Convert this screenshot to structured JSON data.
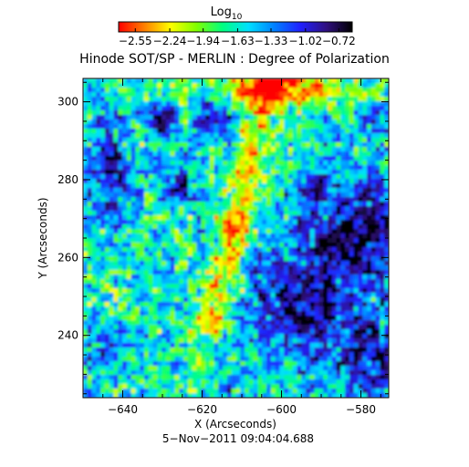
{
  "chart_data": {
    "type": "heatmap",
    "title": "Hinode SOT/SP - MERLIN : Degree of Polarization",
    "xlabel": "X (Arcseconds)",
    "ylabel": "Y (Arcseconds)",
    "xlim": [
      -650,
      -573
    ],
    "ylim": [
      224,
      306
    ],
    "x_ticks": [
      -640,
      -620,
      -600,
      -580
    ],
    "y_ticks": [
      240,
      260,
      280,
      300
    ],
    "x_tick_labels": [
      "−640",
      "−620",
      "−600",
      "−580"
    ],
    "y_tick_labels": [
      "240",
      "260",
      "280",
      "300"
    ],
    "colorbar": {
      "label_main": "Log",
      "label_sub": "10",
      "ticks": [
        -2.55,
        -2.24,
        -1.94,
        -1.63,
        -1.33,
        -1.02,
        -0.72
      ],
      "tick_labels": [
        "−2.55",
        "−2.24",
        "−1.94",
        "−1.63",
        "−1.33",
        "−1.02",
        "−0.72"
      ],
      "range": [
        -2.7,
        -0.6
      ],
      "colormap": [
        "#ff0000",
        "#ff8000",
        "#ffff00",
        "#80ff00",
        "#00ff80",
        "#00e0ff",
        "#0080ff",
        "#2020ff",
        "#301080",
        "#000000"
      ]
    },
    "grid": false,
    "legend": "none"
  },
  "footer": {
    "timestamp": "5−Nov−2011 09:04:04.688"
  },
  "colors": {
    "background": "#ffffff",
    "axis": "#000000"
  }
}
